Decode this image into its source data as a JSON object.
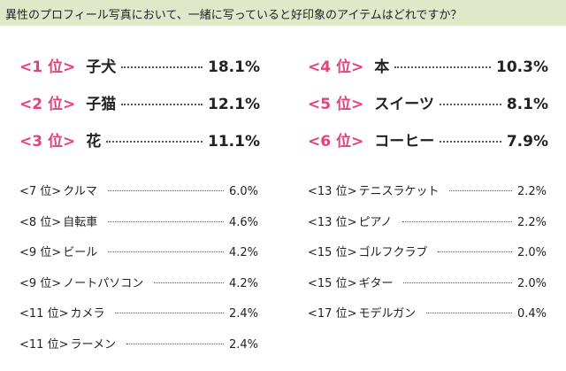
{
  "header": {
    "title": "異性のプロフィール写真において、一緒に写っていると好印象のアイテムはどれですか？"
  },
  "top": [
    [
      {
        "rank": "<1 位>",
        "item": "子犬",
        "value": "18.1%"
      },
      {
        "rank": "<2 位>",
        "item": "子猫",
        "value": "12.1%"
      },
      {
        "rank": "<3 位>",
        "item": "花",
        "value": "11.1%"
      }
    ],
    [
      {
        "rank": "<4 位>",
        "item": "本",
        "value": "10.3%"
      },
      {
        "rank": "<5 位>",
        "item": "スイーツ",
        "value": "8.1%"
      },
      {
        "rank": "<6 位>",
        "item": "コーヒー",
        "value": "7.9%"
      }
    ]
  ],
  "others": [
    [
      {
        "rank": "<7 位>",
        "item": "クルマ",
        "value": "6.0%"
      },
      {
        "rank": "<8 位>",
        "item": "自転車",
        "value": "4.6%"
      },
      {
        "rank": "<9 位>",
        "item": "ビール",
        "value": "4.2%"
      },
      {
        "rank": "<9 位>",
        "item": "ノートパソコン",
        "value": "4.2%"
      },
      {
        "rank": "<11 位>",
        "item": "カメラ",
        "value": "2.4%"
      },
      {
        "rank": "<11 位>",
        "item": "ラーメン",
        "value": "2.4%"
      }
    ],
    [
      {
        "rank": "<13 位>",
        "item": "テニスラケット",
        "value": "2.2%"
      },
      {
        "rank": "<13 位>",
        "item": "ピアノ",
        "value": "2.2%"
      },
      {
        "rank": "<15 位>",
        "item": "ゴルフクラブ",
        "value": "2.0%"
      },
      {
        "rank": "<15 位>",
        "item": "ギター",
        "value": "2.0%"
      },
      {
        "rank": "<17 位>",
        "item": "モデルガン",
        "value": "0.4%"
      }
    ]
  ]
}
